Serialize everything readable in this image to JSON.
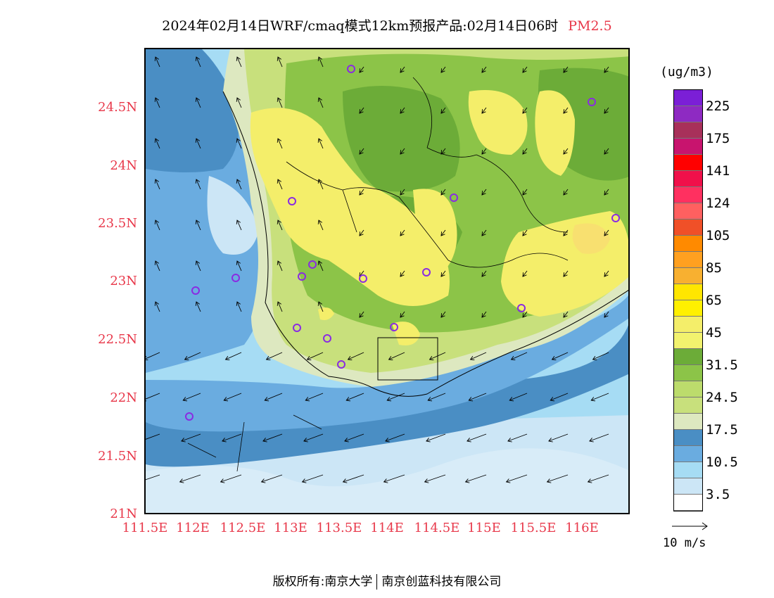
{
  "title": "2024年02月14日WRF/cmaq模式12km预报产品:02月14日06时",
  "variable": "PM2.5",
  "latitude_labels": [
    "24.5N",
    "24N",
    "23.5N",
    "23N",
    "22.5N",
    "22N",
    "21.5N",
    "21N"
  ],
  "longitude_labels": [
    "111.5E",
    "112E",
    "112.5E",
    "113E",
    "113.5E",
    "114E",
    "114.5E",
    "115E",
    "115.5E",
    "116E"
  ],
  "legend": {
    "unit": "(ug/m3)",
    "labels": [
      "225",
      "175",
      "141",
      "124",
      "105",
      "85",
      "65",
      "45",
      "31.5",
      "24.5",
      "17.5",
      "10.5",
      "3.5"
    ],
    "colors": [
      "#7b1fd6",
      "#8e2ac2",
      "#a8305a",
      "#c8146e",
      "#ff0000",
      "#f0104a",
      "#ff3060",
      "#ff6060",
      "#f05028",
      "#ff8a00",
      "#ffa020",
      "#f8b030",
      "#ffe600",
      "#fff000",
      "#f4ee6a",
      "#f2f26e",
      "#6cac38",
      "#8cc448",
      "#bcdc6c",
      "#c8e07c",
      "#dde8c0",
      "#4a8ec4",
      "#6aace0",
      "#a6dcf4",
      "#cce6f6",
      "#ffffff"
    ]
  },
  "wind_reference": "10 m/s",
  "footer": {
    "left": "版权所有:南京大学",
    "right": "南京创蓝科技有限公司"
  },
  "colors": {
    "ocean_deep": "#4a8ec4",
    "ocean_mid": "#6aace0",
    "ocean_light": "#a6dcf4",
    "ocean_pale": "#d8ecf8",
    "land_pale": "#dde8c0",
    "land_light": "#c8e07c",
    "land_green": "#8cc448",
    "land_dark": "#6cac38",
    "haze_yellow": "#f4ee6a",
    "haze_core": "#f8e070",
    "station_marker": "#8a2be2",
    "axis_text": "#e8384a"
  }
}
